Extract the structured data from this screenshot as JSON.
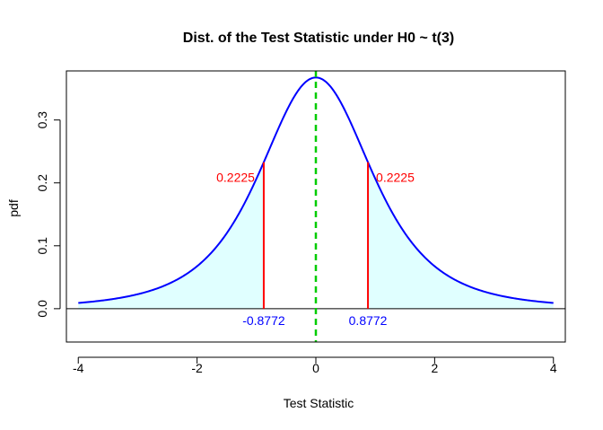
{
  "chart_data": {
    "type": "line",
    "title": "Dist. of the Test Statistic under H0 ~ t(3)",
    "xlabel": "Test Statistic",
    "ylabel": "pdf",
    "xlim": [
      -4.2,
      4.2
    ],
    "ylim": [
      -0.053,
      0.378
    ],
    "x_ticks": [
      -4,
      -2,
      0,
      2,
      4
    ],
    "x_tick_labels": [
      "-4",
      "-2",
      "0",
      "2",
      "4"
    ],
    "y_ticks": [
      0.0,
      0.1,
      0.2,
      0.3
    ],
    "y_tick_labels": [
      "0.0",
      "0.1",
      "0.2",
      "0.3"
    ],
    "grid": false,
    "df": 3,
    "curve_range": [
      -4,
      4
    ],
    "critical_values": [
      -0.8772,
      0.8772
    ],
    "tail_probabilities": [
      0.2225,
      0.2225
    ],
    "critical_labels": [
      "-0.8772",
      "0.8772"
    ],
    "probability_labels": [
      "0.2225",
      "0.2225"
    ],
    "colors": {
      "curve": "#0000ff",
      "tail_fill": "#e0ffff",
      "critical_lines": "#ff0000",
      "center_line": "#00cc00",
      "baseline": "#000000"
    }
  }
}
